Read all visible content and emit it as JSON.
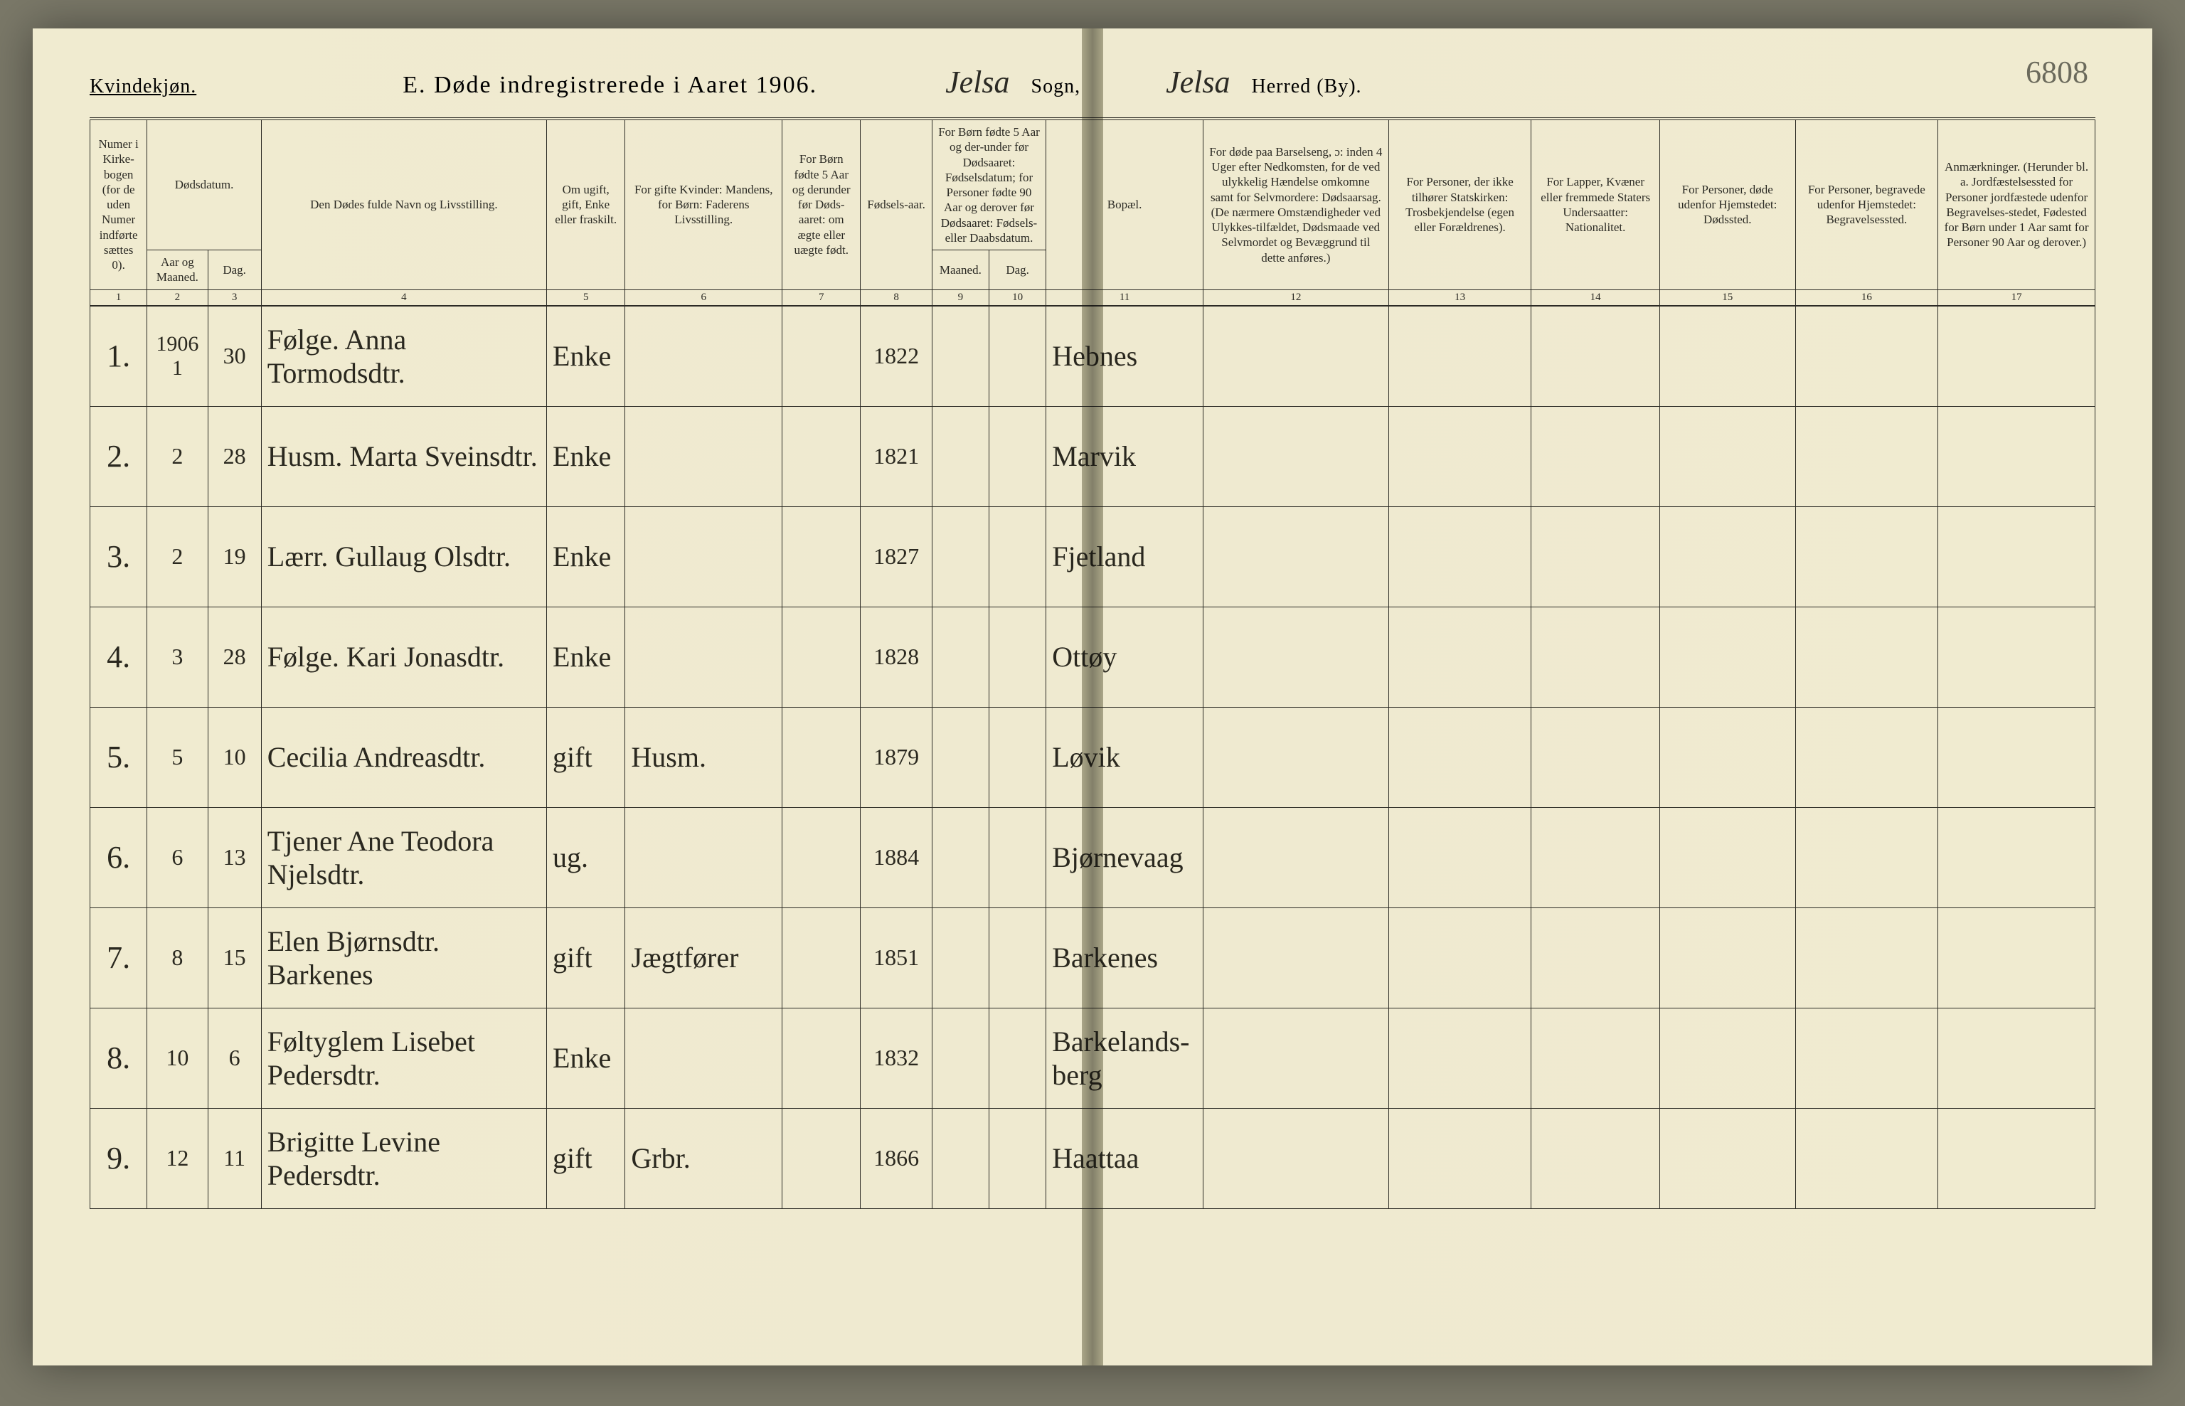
{
  "page_number_handwritten": "6808",
  "top": {
    "gender_heading": "Kvindekjøn.",
    "section_title": "E.  Døde indregistrerede i Aaret 1906.",
    "sogn_value": "Jelsa",
    "sogn_label": "Sogn,",
    "herred_value": "Jelsa",
    "herred_label": "Herred (By)."
  },
  "columns": {
    "c1": "Numer i Kirke-bogen (for de uden Numer indførte sættes 0).",
    "c2a": "Dødsdatum.",
    "c2": "Aar og Maaned.",
    "c3": "Dag.",
    "c4": "Den Dødes fulde Navn og Livsstilling.",
    "c5": "Om ugift, gift, Enke eller fraskilt.",
    "c6": "For gifte Kvinder: Mandens, for Børn: Faderens Livsstilling.",
    "c7": "For Børn fødte 5 Aar og derunder før Døds-aaret: om ægte eller uægte født.",
    "c8": "Fødsels-aar.",
    "c9a": "For Børn fødte 5 Aar og der-under før Dødsaaret: Fødselsdatum; for Personer fødte 90 Aar og derover før Dødsaaret: Fødsels- eller Daabsdatum.",
    "c9": "Maaned.",
    "c10": "Dag.",
    "c11": "Bopæl.",
    "c12": "For døde paa Barselseng, ɔ: inden 4 Uger efter Nedkomsten, for de ved ulykkelig Hændelse omkomne samt for Selvmordere: Dødsaarsag. (De nærmere Omstændigheder ved Ulykkes-tilfældet, Dødsmaade ved Selvmordet og Bevæggrund til dette anføres.)",
    "c13": "For Personer, der ikke tilhører Statskirken: Trosbekjendelse (egen eller Forældrenes).",
    "c14": "For Lapper, Kvæner eller fremmede Staters Undersaatter: Nationalitet.",
    "c15": "For Personer, døde udenfor Hjemstedet: Dødssted.",
    "c16": "For Personer, begravede udenfor Hjemstedet: Begravelsessted.",
    "c17": "Anmærkninger. (Herunder bl. a. Jordfæstelsessted for Personer jordfæstede udenfor Begravelses-stedet, Fødested for Børn under 1 Aar samt for Personer 90 Aar og derover.)"
  },
  "colnums": [
    "1",
    "2",
    "3",
    "4",
    "5",
    "6",
    "7",
    "8",
    "9",
    "10",
    "11",
    "12",
    "13",
    "14",
    "15",
    "16",
    "17"
  ],
  "year_in_col2": "1906",
  "rows": [
    {
      "idx": "1.",
      "aar": "1",
      "dag": "30",
      "navn": "Følge. Anna Tormodsdtr.",
      "stand": "Enke",
      "for": "",
      "egte": "",
      "faar": "1822",
      "m": "",
      "d": "",
      "bopel": "Hebnes"
    },
    {
      "idx": "2.",
      "aar": "2",
      "dag": "28",
      "navn": "Husm. Marta Sveinsdtr.",
      "stand": "Enke",
      "for": "",
      "egte": "",
      "faar": "1821",
      "m": "",
      "d": "",
      "bopel": "Marvik"
    },
    {
      "idx": "3.",
      "aar": "2",
      "dag": "19",
      "navn": "Lærr. Gullaug Olsdtr.",
      "stand": "Enke",
      "for": "",
      "egte": "",
      "faar": "1827",
      "m": "",
      "d": "",
      "bopel": "Fjetland"
    },
    {
      "idx": "4.",
      "aar": "3",
      "dag": "28",
      "navn": "Følge. Kari Jonasdtr.",
      "stand": "Enke",
      "for": "",
      "egte": "",
      "faar": "1828",
      "m": "",
      "d": "",
      "bopel": "Ottøy"
    },
    {
      "idx": "5.",
      "aar": "5",
      "dag": "10",
      "navn": "Cecilia Andreasdtr.",
      "stand": "gift",
      "for": "Husm.",
      "egte": "",
      "faar": "1879",
      "m": "",
      "d": "",
      "bopel": "Løvik"
    },
    {
      "idx": "6.",
      "aar": "6",
      "dag": "13",
      "navn": "Tjener Ane Teodora Njelsdtr.",
      "stand": "ug.",
      "for": "",
      "egte": "",
      "faar": "1884",
      "m": "",
      "d": "",
      "bopel": "Bjørnevaag"
    },
    {
      "idx": "7.",
      "aar": "8",
      "dag": "15",
      "navn": "Elen Bjørnsdtr. Barkenes",
      "stand": "gift",
      "for": "Jægtfører",
      "egte": "",
      "faar": "1851",
      "m": "",
      "d": "",
      "bopel": "Barkenes"
    },
    {
      "idx": "8.",
      "aar": "10",
      "dag": "6",
      "navn": "Føltyglem Lisebet Pedersdtr.",
      "stand": "Enke",
      "for": "",
      "egte": "",
      "faar": "1832",
      "m": "",
      "d": "",
      "bopel": "Barkelands-berg"
    },
    {
      "idx": "9.",
      "aar": "12",
      "dag": "11",
      "navn": "Brigitte Levine Pedersdtr.",
      "stand": "gift",
      "for": "Grbr.",
      "egte": "",
      "faar": "1866",
      "m": "",
      "d": "",
      "bopel": "Haattaa"
    }
  ],
  "colors": {
    "paper": "#efead0",
    "ink": "#2b2a24",
    "fold": "#c8c3a0",
    "page_number": "#6b6a5c"
  }
}
